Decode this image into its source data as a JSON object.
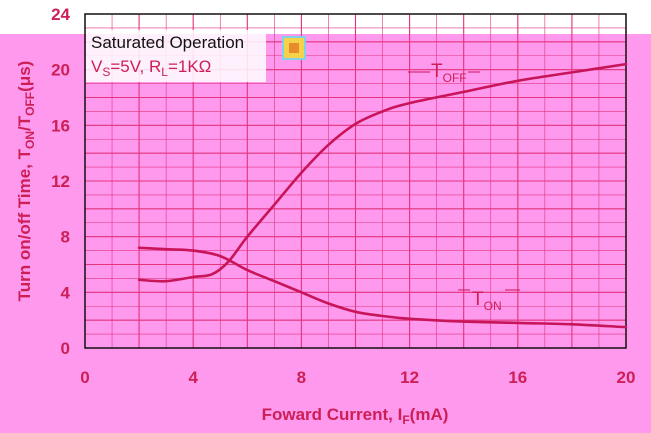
{
  "chart_data": {
    "type": "line",
    "xlabel": {
      "main": "Foward Current, I",
      "sub": "F",
      "unit": "(mA)"
    },
    "ylabel": {
      "p1": "Turn on/off Time, T",
      "s1": "ON",
      "p2": "/T",
      "s2": "OFF",
      "p3": "(μs)"
    },
    "xlim": [
      0,
      20
    ],
    "ylim": [
      0,
      24
    ],
    "xticks": [
      "0",
      "4",
      "8",
      "12",
      "16",
      "20"
    ],
    "yticks": [
      "0",
      "4",
      "8",
      "12",
      "16",
      "20",
      "24"
    ],
    "grid": true,
    "annotations": {
      "line1": "Saturated Operation",
      "line2_a": "V",
      "line2_a_sub": "S",
      "line2_b": "=5V, R",
      "line2_b_sub": "L",
      "line2_c": "=1KΩ"
    },
    "series": [
      {
        "name": "T",
        "name_sub": "OFF",
        "x": [
          2,
          3,
          4,
          4.7,
          5.3,
          6,
          7,
          8,
          9,
          10,
          11,
          12,
          14,
          16,
          18,
          20
        ],
        "y": [
          4.9,
          4.8,
          5.1,
          5.3,
          6.2,
          8.0,
          10.3,
          12.6,
          14.6,
          16.1,
          17.0,
          17.6,
          18.4,
          19.2,
          19.8,
          20.4
        ]
      },
      {
        "name": "T",
        "name_sub": "ON",
        "x": [
          2,
          3,
          4,
          5,
          6,
          7,
          8,
          9,
          10,
          11,
          12,
          14,
          16,
          18,
          20
        ],
        "y": [
          7.2,
          7.1,
          7.0,
          6.6,
          5.6,
          4.8,
          4.0,
          3.2,
          2.6,
          2.3,
          2.1,
          1.9,
          1.8,
          1.7,
          1.5
        ]
      }
    ],
    "colors": {
      "curve": "#c8155a",
      "grid": "#e2357e",
      "label": "#cc1f56",
      "plot_bg": "#ff99ee"
    }
  }
}
